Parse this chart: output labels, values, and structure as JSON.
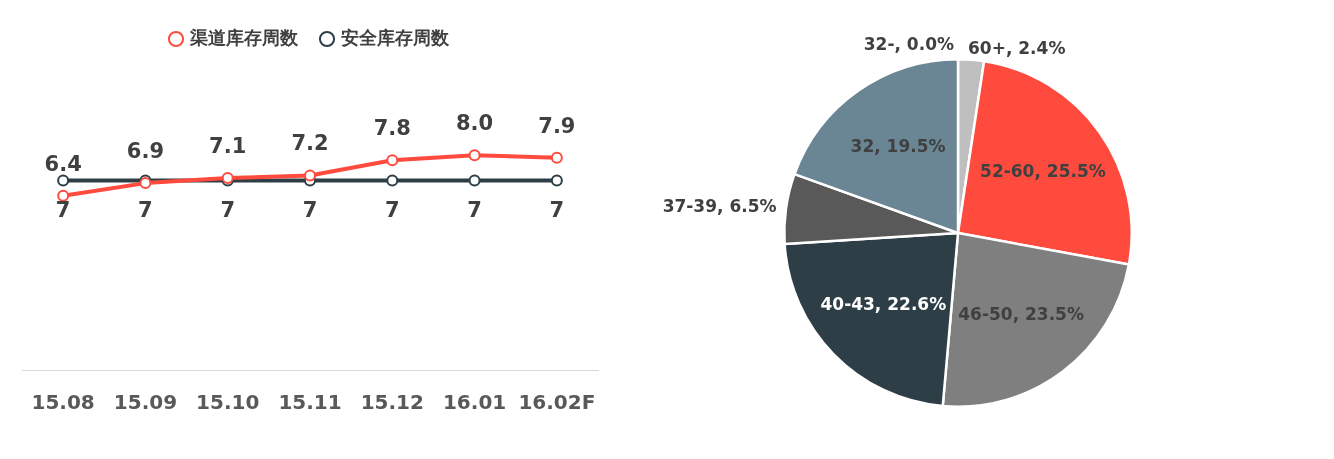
{
  "chart_data": [
    {
      "type": "line",
      "categories": [
        "15.08",
        "15.09",
        "15.10",
        "15.11",
        "15.12",
        "16.01",
        "16.02F"
      ],
      "legend": "top",
      "marker": "circle",
      "line_style": "solid",
      "grid": false,
      "tick_labels": "x",
      "series": [
        {
          "name": "渠道库存周数",
          "color": "#ff4b3e",
          "values": [
            6.4,
            6.9,
            7.1,
            7.2,
            7.8,
            8.0,
            7.9
          ],
          "value_labels": [
            "6.4",
            "6.9",
            "7.1",
            "7.2",
            "7.8",
            "8.0",
            "7.9"
          ]
        },
        {
          "name": "安全库存周数",
          "color": "#2e3e47",
          "values": [
            7,
            7,
            7,
            7,
            7,
            7,
            7
          ],
          "value_labels": [
            "7",
            "7",
            "7",
            "7",
            "7",
            "7",
            "7"
          ]
        }
      ]
    },
    {
      "type": "pie",
      "categories": [
        "60+, 2.4%",
        "52-60, 25.5%",
        "46-50, 23.5%",
        "40-43, 22.6%",
        "37-39, 6.5%",
        "32, 19.5%",
        "32-, 0.0%"
      ],
      "values": [
        2.4,
        25.5,
        23.5,
        22.6,
        6.5,
        19.5,
        0.0
      ],
      "colors": [
        "#bfbfbf",
        "#ff4b3e",
        "#7f7f7f",
        "#2e3e47",
        "#595959",
        "#6a8594",
        "#a6a6a6"
      ],
      "legend": false
    }
  ]
}
